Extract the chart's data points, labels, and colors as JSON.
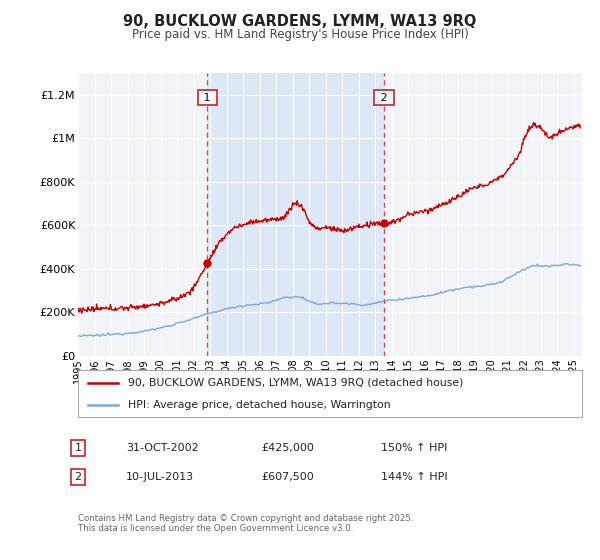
{
  "title": "90, BUCKLOW GARDENS, LYMM, WA13 9RQ",
  "subtitle": "Price paid vs. HM Land Registry's House Price Index (HPI)",
  "ylim": [
    0,
    1300000
  ],
  "xlim_start": 1995.0,
  "xlim_end": 2025.5,
  "background_color": "#ffffff",
  "plot_bg_color": "#f2f4f8",
  "grid_color": "#ffffff",
  "shade_color": "#dce8f5",
  "transaction1_x": 2002.833,
  "transaction1_y": 425000,
  "transaction2_x": 2013.533,
  "transaction2_y": 607500,
  "vline_color": "#dd4444",
  "house_line_color": "#cc0000",
  "hpi_line_color": "#7aaadd",
  "legend_house": "90, BUCKLOW GARDENS, LYMM, WA13 9RQ (detached house)",
  "legend_hpi": "HPI: Average price, detached house, Warrington",
  "annotation1_date": "31-OCT-2002",
  "annotation1_price": "£425,000",
  "annotation1_hpi": "150% ↑ HPI",
  "annotation2_date": "10-JUL-2013",
  "annotation2_price": "£607,500",
  "annotation2_hpi": "144% ↑ HPI",
  "footer": "Contains HM Land Registry data © Crown copyright and database right 2025.\nThis data is licensed under the Open Government Licence v3.0.",
  "yticks": [
    0,
    200000,
    400000,
    600000,
    800000,
    1000000,
    1200000
  ],
  "ytick_labels": [
    "£0",
    "£200K",
    "£400K",
    "£600K",
    "£800K",
    "£1M",
    "£1.2M"
  ]
}
